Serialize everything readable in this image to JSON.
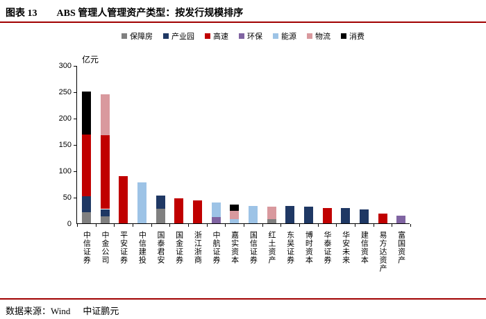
{
  "header": {
    "label": "图表 13",
    "title": "ABS 管理人管理资产类型：按发行规模排序"
  },
  "footer": {
    "source_left": "数据来源：Wind",
    "source_right": "中证鹏元"
  },
  "colors": {
    "rule_red": "#a00000",
    "axis_black": "#000000"
  },
  "chart_data": {
    "type": "bar",
    "stacked": true,
    "title": "ABS 管理人管理资产类型：按发行规模排序",
    "unit_label": "亿元",
    "xlabel": "",
    "ylabel": "亿元",
    "ylim": [
      0,
      300
    ],
    "yticks": [
      0,
      50,
      100,
      150,
      200,
      250,
      300
    ],
    "grid": false,
    "legend_position": "top",
    "legend": [
      "保障房",
      "产业园",
      "高速",
      "环保",
      "能源",
      "物流",
      "消费"
    ],
    "series_colors": {
      "保障房": "#808080",
      "产业园": "#1f3864",
      "高速": "#c00000",
      "环保": "#8064a2",
      "能源": "#9dc3e6",
      "物流": "#d9999e",
      "消费": "#000000"
    },
    "categories": [
      "中信证券",
      "中金公司",
      "平安证券",
      "中信建投",
      "国泰君安",
      "国金证券",
      "浙江浙商",
      "中航证券",
      "嘉实资本",
      "国信证券",
      "红土资产",
      "东吴证券",
      "博时资本",
      "华泰证券",
      "华安未来",
      "建信资本",
      "易方达资产",
      "富国资产"
    ],
    "series": [
      {
        "name": "保障房",
        "values": [
          21,
          13,
          0,
          0,
          28,
          0,
          0,
          0,
          0,
          0,
          8,
          0,
          0,
          0,
          0,
          0,
          0,
          0
        ]
      },
      {
        "name": "产业园",
        "values": [
          30,
          14,
          0,
          0,
          25,
          0,
          0,
          0,
          0,
          0,
          0,
          33,
          31,
          0,
          29,
          26,
          0,
          0
        ]
      },
      {
        "name": "高速",
        "values": [
          117,
          140,
          90,
          0,
          0,
          47,
          43,
          0,
          0,
          0,
          0,
          0,
          0,
          29,
          0,
          0,
          18,
          0
        ]
      },
      {
        "name": "环保",
        "values": [
          0,
          0,
          0,
          0,
          0,
          0,
          0,
          12,
          0,
          0,
          0,
          0,
          0,
          0,
          0,
          0,
          0,
          15
        ]
      },
      {
        "name": "能源",
        "values": [
          0,
          0,
          0,
          77,
          0,
          0,
          0,
          28,
          8,
          33,
          0,
          0,
          0,
          0,
          0,
          0,
          0,
          0
        ]
      },
      {
        "name": "物流",
        "values": [
          0,
          78,
          0,
          0,
          0,
          0,
          0,
          0,
          16,
          0,
          23,
          0,
          0,
          0,
          0,
          0,
          0,
          0
        ]
      },
      {
        "name": "消费",
        "values": [
          82,
          0,
          0,
          0,
          0,
          0,
          0,
          0,
          11,
          0,
          0,
          0,
          0,
          0,
          0,
          0,
          0,
          0
        ]
      }
    ],
    "totals": [
      250,
      245,
      90,
      77,
      53,
      47,
      43,
      40,
      35,
      33,
      31,
      33,
      31,
      29,
      29,
      26,
      18,
      15
    ]
  }
}
